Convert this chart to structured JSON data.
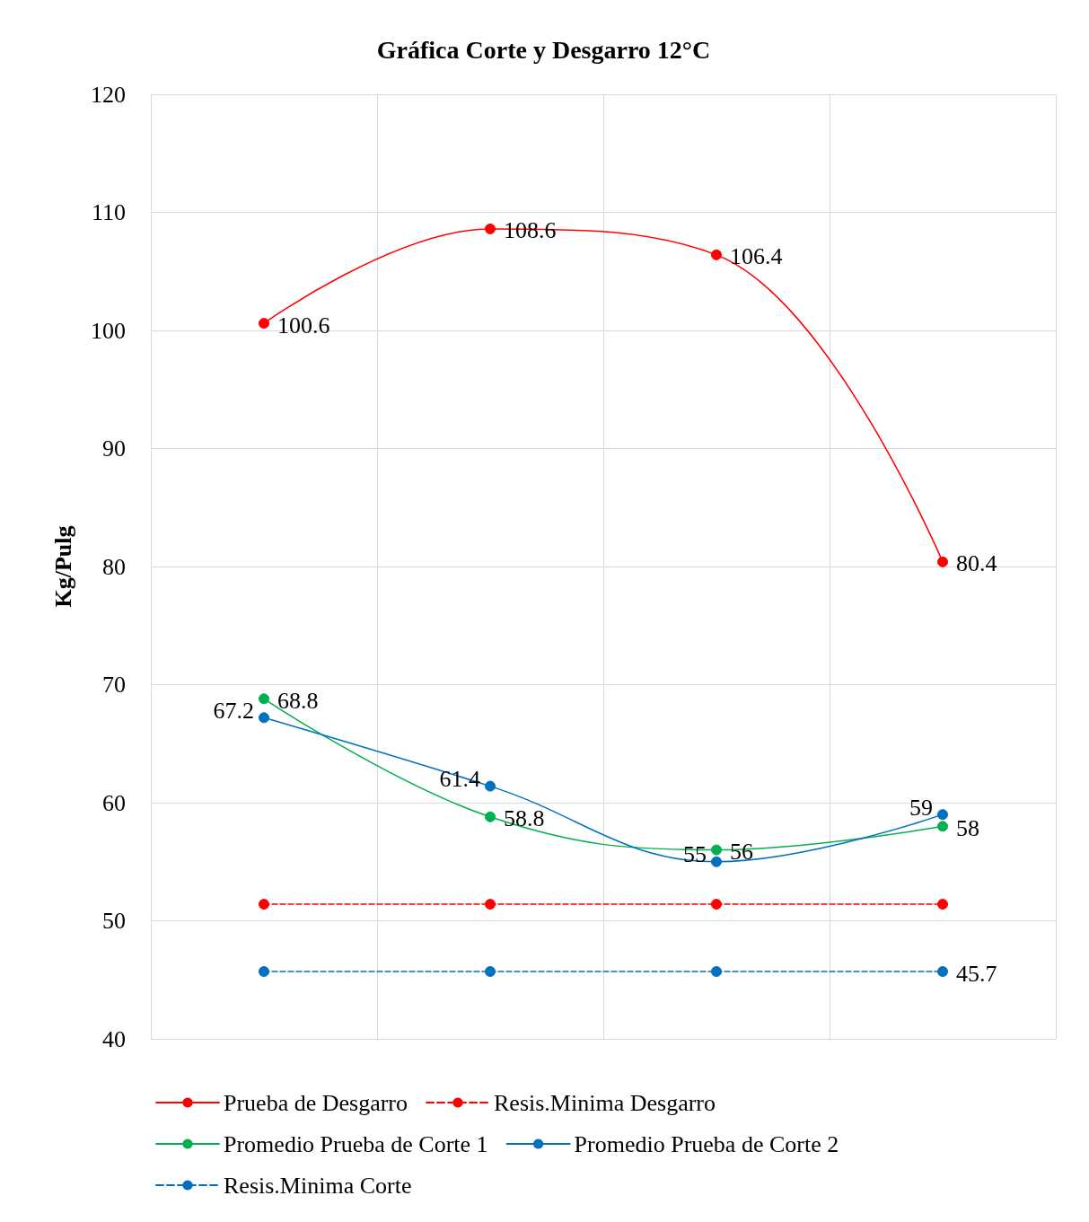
{
  "chart_data": {
    "type": "line",
    "title": "Gráfica Corte y Desgarro 12°C",
    "ylabel": "Kg/Pulg",
    "categories": [
      null,
      null,
      null,
      null
    ],
    "ylim": [
      40,
      120
    ],
    "yticks": [
      40,
      50,
      60,
      70,
      80,
      90,
      100,
      110,
      120
    ],
    "grid": true,
    "legend": "bottom",
    "marker": "circle",
    "tick_labels": "y",
    "series": [
      {
        "name": "Prueba de Desgarro",
        "color": "#ff0000",
        "values": [
          100.6,
          108.6,
          106.4,
          80.4
        ],
        "value_labels": [
          "100.6",
          "108.6",
          "106.4",
          "80.4"
        ]
      },
      {
        "name": "Resis.Minima Desgarro",
        "color": "#ff0000",
        "line_style": "dashed",
        "values": [
          51.4,
          51.4,
          51.4,
          51.4
        ]
      },
      {
        "name": "Promedio Prueba de Corte 1",
        "color": "#00b050",
        "values": [
          68.8,
          58.8,
          56,
          58
        ],
        "value_labels": [
          "68.8",
          "58.8",
          "56",
          "58"
        ]
      },
      {
        "name": "Promedio Prueba de Corte 2",
        "color": "#0070c0",
        "values": [
          67.2,
          61.4,
          55,
          59
        ],
        "value_labels": [
          "67.2",
          "61.4",
          "55",
          "59"
        ]
      },
      {
        "name": "Resis.Minima Corte",
        "color": "#0070c0",
        "line_style": "dashed",
        "values": [
          45.7,
          45.7,
          45.7,
          45.7
        ],
        "value_labels": [
          null,
          null,
          null,
          "45.7"
        ]
      }
    ]
  }
}
